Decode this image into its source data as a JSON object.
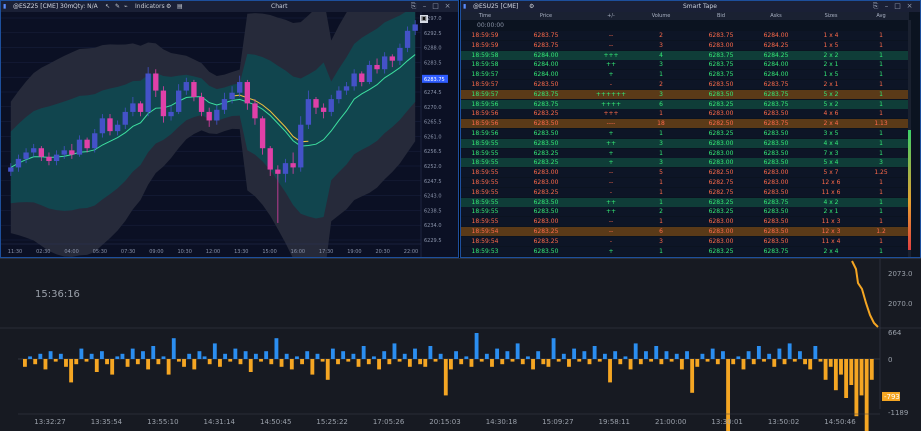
{
  "chart": {
    "symbol": "@ESZ25 [CME] 30m",
    "qty_label": "Qty: N/A",
    "indicators_label": "Indicators",
    "title": "Chart",
    "last_price_tag": "6283.75",
    "y_ticks": [
      "6297.0",
      "6292.5",
      "6288.0",
      "6283.5",
      "6279.0",
      "6274.5",
      "6270.0",
      "6265.5",
      "6261.0",
      "6256.5",
      "6252.0",
      "6247.5",
      "6243.0",
      "6238.5",
      "6234.0",
      "6229.5"
    ],
    "x_ticks": [
      "11:30",
      "02:30",
      "04:00",
      "05:30",
      "07:30",
      "09:00",
      "10:30",
      "12:00",
      "13:30",
      "15:00",
      "16:00",
      "17:30",
      "19:00",
      "20:30",
      "22:00"
    ],
    "candles": [
      {
        "o": 6262.0,
        "c": 6263.0,
        "h": 6264.0,
        "l": 6261.0
      },
      {
        "o": 6263.0,
        "c": 6265.0,
        "h": 6266.0,
        "l": 6262.0
      },
      {
        "o": 6265.0,
        "c": 6266.5,
        "h": 6267.5,
        "l": 6264.0
      },
      {
        "o": 6266.5,
        "c": 6267.5,
        "h": 6268.5,
        "l": 6265.5
      },
      {
        "o": 6267.5,
        "c": 6265.5,
        "h": 6268.0,
        "l": 6264.5
      },
      {
        "o": 6265.5,
        "c": 6264.5,
        "h": 6266.5,
        "l": 6263.5
      },
      {
        "o": 6264.5,
        "c": 6266.0,
        "h": 6267.0,
        "l": 6263.5
      },
      {
        "o": 6266.0,
        "c": 6267.0,
        "h": 6268.0,
        "l": 6265.0
      },
      {
        "o": 6267.0,
        "c": 6266.0,
        "h": 6268.5,
        "l": 6265.0
      },
      {
        "o": 6266.0,
        "c": 6269.5,
        "h": 6270.5,
        "l": 6265.5
      },
      {
        "o": 6269.5,
        "c": 6267.5,
        "h": 6270.0,
        "l": 6266.5
      },
      {
        "o": 6267.5,
        "c": 6271.0,
        "h": 6272.0,
        "l": 6266.5
      },
      {
        "o": 6271.0,
        "c": 6274.5,
        "h": 6275.5,
        "l": 6270.0
      },
      {
        "o": 6274.5,
        "c": 6271.5,
        "h": 6275.5,
        "l": 6270.5
      },
      {
        "o": 6271.5,
        "c": 6273.0,
        "h": 6274.0,
        "l": 6270.5
      },
      {
        "o": 6273.0,
        "c": 6276.0,
        "h": 6277.0,
        "l": 6272.0
      },
      {
        "o": 6276.0,
        "c": 6278.0,
        "h": 6279.5,
        "l": 6275.0
      },
      {
        "o": 6278.0,
        "c": 6276.0,
        "h": 6278.5,
        "l": 6275.0
      },
      {
        "o": 6276.0,
        "c": 6285.0,
        "h": 6286.5,
        "l": 6275.0
      },
      {
        "o": 6285.0,
        "c": 6281.0,
        "h": 6286.0,
        "l": 6279.5
      },
      {
        "o": 6281.0,
        "c": 6275.0,
        "h": 6282.0,
        "l": 6273.5
      },
      {
        "o": 6275.0,
        "c": 6276.0,
        "h": 6277.5,
        "l": 6274.0
      },
      {
        "o": 6276.0,
        "c": 6281.0,
        "h": 6282.5,
        "l": 6275.5
      },
      {
        "o": 6281.0,
        "c": 6283.0,
        "h": 6284.0,
        "l": 6280.0
      },
      {
        "o": 6283.0,
        "c": 6279.5,
        "h": 6283.5,
        "l": 6278.5
      },
      {
        "o": 6279.5,
        "c": 6276.0,
        "h": 6280.5,
        "l": 6275.0
      },
      {
        "o": 6276.0,
        "c": 6274.0,
        "h": 6277.0,
        "l": 6272.5
      },
      {
        "o": 6274.0,
        "c": 6276.5,
        "h": 6277.5,
        "l": 6273.0
      },
      {
        "o": 6276.5,
        "c": 6279.0,
        "h": 6280.5,
        "l": 6275.5
      },
      {
        "o": 6279.0,
        "c": 6280.5,
        "h": 6282.0,
        "l": 6278.0
      },
      {
        "o": 6280.5,
        "c": 6283.0,
        "h": 6284.5,
        "l": 6279.5
      },
      {
        "o": 6283.0,
        "c": 6278.0,
        "h": 6283.5,
        "l": 6276.5
      },
      {
        "o": 6278.0,
        "c": 6274.5,
        "h": 6279.0,
        "l": 6273.0
      },
      {
        "o": 6274.5,
        "c": 6267.5,
        "h": 6275.0,
        "l": 6266.0
      },
      {
        "o": 6267.5,
        "c": 6262.5,
        "h": 6268.0,
        "l": 6261.0
      },
      {
        "o": 6262.5,
        "c": 6261.5,
        "h": 6263.5,
        "l": 6250.0
      },
      {
        "o": 6261.5,
        "c": 6264.0,
        "h": 6265.0,
        "l": 6259.5
      },
      {
        "o": 6264.0,
        "c": 6263.0,
        "h": 6266.5,
        "l": 6261.5
      },
      {
        "o": 6263.0,
        "c": 6273.0,
        "h": 6275.0,
        "l": 6262.0
      },
      {
        "o": 6273.0,
        "c": 6279.0,
        "h": 6281.0,
        "l": 6272.0
      },
      {
        "o": 6279.0,
        "c": 6277.0,
        "h": 6279.5,
        "l": 6275.5
      },
      {
        "o": 6277.0,
        "c": 6276.0,
        "h": 6278.0,
        "l": 6274.5
      },
      {
        "o": 6276.0,
        "c": 6279.0,
        "h": 6280.0,
        "l": 6275.0
      },
      {
        "o": 6279.0,
        "c": 6281.0,
        "h": 6282.0,
        "l": 6278.0
      },
      {
        "o": 6281.0,
        "c": 6282.0,
        "h": 6283.0,
        "l": 6280.0
      },
      {
        "o": 6282.0,
        "c": 6285.0,
        "h": 6286.0,
        "l": 6281.0
      },
      {
        "o": 6285.0,
        "c": 6283.0,
        "h": 6285.5,
        "l": 6282.0
      },
      {
        "o": 6283.0,
        "c": 6287.0,
        "h": 6288.0,
        "l": 6282.5
      },
      {
        "o": 6287.0,
        "c": 6286.0,
        "h": 6288.5,
        "l": 6285.0
      },
      {
        "o": 6286.0,
        "c": 6289.0,
        "h": 6290.0,
        "l": 6285.0
      },
      {
        "o": 6289.0,
        "c": 6288.0,
        "h": 6289.5,
        "l": 6286.5
      },
      {
        "o": 6288.0,
        "c": 6291.0,
        "h": 6292.0,
        "l": 6287.0
      },
      {
        "o": 6291.0,
        "c": 6295.0,
        "h": 6296.0,
        "l": 6290.0
      },
      {
        "o": 6295.0,
        "c": 6296.5,
        "h": 6297.5,
        "l": 6294.0
      }
    ],
    "colors": {
      "up": "#4452c8",
      "down": "#e040a8",
      "band": "#0e4a52",
      "outer": "#262a3a",
      "mid": "#3de0a0",
      "dev": "#f0c040"
    }
  },
  "tape": {
    "title": "Smart Tape",
    "symbol": "@ESU25 [CME]",
    "columns": [
      "Time",
      "Price",
      "+/-",
      "Volume",
      "Bid",
      "Asks",
      "Sizes",
      "Avg"
    ],
    "first_time": "00:00:00",
    "rows": [
      [
        "18:59:59",
        "6283.75",
        "--",
        "2",
        "6283.75",
        "6284.00",
        "1 x 4",
        "1",
        "dn",
        "dark"
      ],
      [
        "18:59:59",
        "6283.75",
        "--",
        "3",
        "6283.00",
        "6284.25",
        "1 x 5",
        "1",
        "dn",
        "dark"
      ],
      [
        "18:59:58",
        "6284.00",
        "+++",
        "4",
        "6283.75",
        "6284.25",
        "2 x 2",
        "1",
        "up",
        "teal"
      ],
      [
        "18:59:58",
        "6284.00",
        "++",
        "3",
        "6283.75",
        "6284.00",
        "2 x 1",
        "1",
        "up",
        "dark"
      ],
      [
        "18:59:57",
        "6284.00",
        "+",
        "1",
        "6283.75",
        "6284.00",
        "1 x 5",
        "1",
        "up",
        "dark"
      ],
      [
        "18:59:57",
        "6283.50",
        "-",
        "2",
        "6283.50",
        "6283.75",
        "2 x 1",
        "1",
        "dn",
        "dark"
      ],
      [
        "18:59:57",
        "6283.75",
        "++++++",
        "3",
        "6283.50",
        "6283.75",
        "5 x 2",
        "1",
        "up",
        "orange"
      ],
      [
        "18:59:56",
        "6283.75",
        "++++",
        "6",
        "6283.25",
        "6283.75",
        "5 x 2",
        "1",
        "up",
        "teal"
      ],
      [
        "18:59:56",
        "6283.25",
        "+++",
        "1",
        "6283.00",
        "6283.50",
        "4 x 6",
        "1",
        "dn",
        "dark"
      ],
      [
        "18:59:56",
        "6283.50",
        "----",
        "18",
        "6282.50",
        "6283.75",
        "2 x 4",
        "1.13",
        "dn",
        "orange"
      ],
      [
        "18:59:56",
        "6283.50",
        "+",
        "1",
        "6283.25",
        "6283.50",
        "3 x 5",
        "1",
        "up",
        "dark"
      ],
      [
        "18:59:55",
        "6283.50",
        "++",
        "3",
        "6283.00",
        "6283.50",
        "4 x 4",
        "1",
        "up",
        "teal"
      ],
      [
        "18:59:55",
        "6283.25",
        "+",
        "1",
        "6283.00",
        "6283.50",
        "7 x 3",
        "1",
        "up",
        "dark"
      ],
      [
        "18:59:55",
        "6283.25",
        "+",
        "3",
        "6283.00",
        "6283.50",
        "5 x 4",
        "3",
        "up",
        "teal"
      ],
      [
        "18:59:55",
        "6283.00",
        "--",
        "5",
        "6282.50",
        "6283.00",
        "5 x 7",
        "1.25",
        "dn",
        "dark"
      ],
      [
        "18:59:55",
        "6283.00",
        "--",
        "1",
        "6282.75",
        "6283.00",
        "12 x 6",
        "1",
        "dn",
        "dark"
      ],
      [
        "18:59:55",
        "6283.25",
        "-",
        "1",
        "6282.75",
        "6283.50",
        "11 x 6",
        "1",
        "dn",
        "dark"
      ],
      [
        "18:59:55",
        "6283.50",
        "++",
        "1",
        "6283.25",
        "6283.75",
        "4 x 2",
        "1",
        "up",
        "teal"
      ],
      [
        "18:59:55",
        "6283.50",
        "++",
        "2",
        "6283.25",
        "6283.50",
        "2 x 1",
        "1",
        "up",
        "dark"
      ],
      [
        "18:59:55",
        "6283.00",
        "--",
        "1",
        "6283.00",
        "6283.50",
        "11 x 3",
        "1",
        "dn",
        "dark"
      ],
      [
        "18:59:54",
        "6283.25",
        "--",
        "6",
        "6283.00",
        "6283.50",
        "12 x 3",
        "1.2",
        "dn",
        "orange"
      ],
      [
        "18:59:54",
        "6283.25",
        "-",
        "3",
        "6283.00",
        "6283.50",
        "11 x 4",
        "1",
        "dn",
        "dark"
      ],
      [
        "18:59:53",
        "6283.50",
        "+",
        "1",
        "6283.25",
        "6283.75",
        "2 x 4",
        "1",
        "up",
        "dark"
      ]
    ]
  },
  "bottom": {
    "clock": "15:36:16",
    "y_ticks": [
      "2073.0",
      "2070.0",
      "664",
      "0",
      "-1189"
    ],
    "price_tag": "-793",
    "x_ticks": [
      "13:32:27",
      "13:35:54",
      "13:55:10",
      "14:31:14",
      "14:50:45",
      "15:25:22",
      "17:05:26",
      "20:15:03",
      "14:30:18",
      "15:09:27",
      "19:58:11",
      "21:00:00",
      "13:30:01",
      "13:50:02",
      "14:50:46"
    ],
    "hist_values": [
      -3,
      1,
      -2,
      2,
      -4,
      3,
      -1,
      2,
      -3,
      -9,
      -2,
      4,
      -1,
      2,
      -5,
      3,
      -2,
      -6,
      1,
      2,
      -3,
      4,
      -2,
      3,
      -4,
      5,
      -2,
      1,
      -6,
      8,
      -1,
      -3,
      2,
      -4,
      3,
      1,
      -2,
      6,
      -3,
      2,
      -1,
      4,
      -2,
      3,
      -5,
      2,
      -1,
      3,
      -2,
      8,
      -3,
      2,
      -4,
      1,
      -2,
      3,
      -6,
      2,
      -1,
      -8,
      4,
      -2,
      3,
      -1,
      2,
      -3,
      5,
      -2,
      1,
      -4,
      3,
      -2,
      6,
      -1,
      2,
      -3,
      4,
      -2,
      -3,
      5,
      -1,
      2,
      -14,
      -4,
      3,
      -2,
      1,
      -3,
      10,
      -1,
      2,
      -3,
      4,
      -2,
      3,
      -1,
      6,
      -2,
      1,
      -4,
      3,
      -2,
      -3,
      8,
      -1,
      2,
      -3,
      4,
      -1,
      3,
      -2,
      5,
      -1,
      2,
      -9,
      3,
      -2,
      1,
      -4,
      6,
      -2,
      3,
      -1,
      5,
      -2,
      3,
      -1,
      2,
      -4,
      3,
      -13,
      -3,
      2,
      -1,
      4,
      -2,
      3,
      -30,
      -2,
      1,
      -4,
      3,
      -2,
      5,
      -1,
      2,
      -3,
      4,
      -2,
      6,
      -1,
      3,
      -2,
      -4,
      5,
      -1,
      -8,
      -3,
      -12,
      -6,
      -15,
      -10,
      -22,
      -14,
      -30,
      -8
    ]
  }
}
